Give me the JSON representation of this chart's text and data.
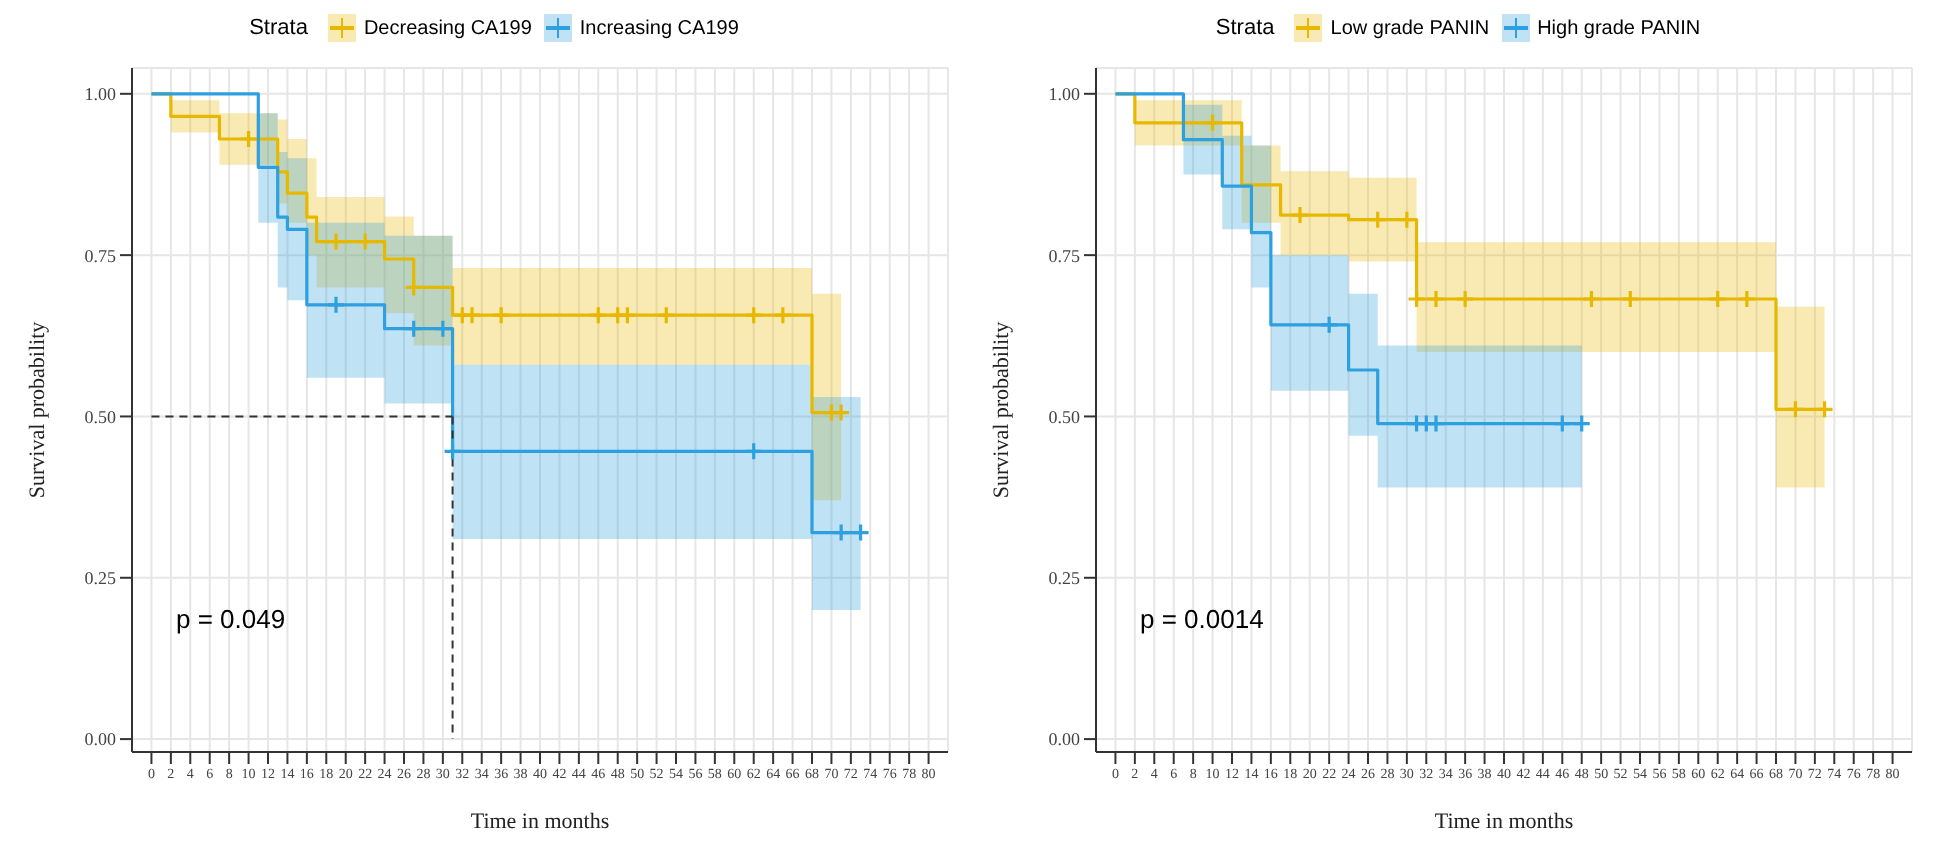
{
  "chart_data": [
    {
      "type": "step",
      "xlabel": "Time in months",
      "ylabel": "Survival probability",
      "legend_title": "Strata",
      "legend": "top",
      "grid": true,
      "xlim": [
        -2,
        82
      ],
      "xticks": [
        0,
        2,
        4,
        6,
        8,
        10,
        12,
        14,
        16,
        18,
        20,
        22,
        24,
        26,
        28,
        30,
        32,
        34,
        36,
        38,
        40,
        42,
        44,
        46,
        48,
        50,
        52,
        54,
        56,
        58,
        60,
        62,
        64,
        66,
        68,
        70,
        72,
        74,
        76,
        78,
        80
      ],
      "ylim": [
        -0.02,
        1.04
      ],
      "yticks": [
        {
          "value": 0,
          "label": "0.00"
        },
        {
          "value": 0.25,
          "label": "0.25"
        },
        {
          "value": 0.5,
          "label": "0.50"
        },
        {
          "value": 0.75,
          "label": "0.75"
        },
        {
          "value": 1,
          "label": "1.00"
        }
      ],
      "annotations": [
        "p = 0.049"
      ],
      "series": [
        {
          "name": "Decreasing CA199",
          "color": "#e7b800",
          "x": [
            0,
            2,
            7,
            13,
            14,
            16,
            17,
            24,
            27,
            31,
            68,
            71
          ],
          "values": [
            1,
            0.965,
            0.93,
            0.879,
            0.846,
            0.809,
            0.771,
            0.744,
            0.7,
            0.657,
            0.506,
            0.506
          ],
          "lower": [
            1,
            0.94,
            0.89,
            0.83,
            0.8,
            0.75,
            0.7,
            0.66,
            0.61,
            0.58,
            0.37,
            0.37
          ],
          "upper": [
            1,
            0.99,
            0.97,
            0.96,
            0.93,
            0.9,
            0.84,
            0.81,
            0.78,
            0.73,
            0.69,
            0.69
          ]
        },
        {
          "name": "Increasing CA199",
          "color": "#2e9fdf",
          "x": [
            0,
            11,
            13,
            14,
            16,
            24,
            31,
            68,
            73
          ],
          "values": [
            1,
            0.886,
            0.809,
            0.79,
            0.673,
            0.636,
            0.446,
            0.32,
            0.32
          ],
          "lower": [
            1,
            0.8,
            0.7,
            0.68,
            0.56,
            0.52,
            0.31,
            0.2,
            0.2
          ],
          "upper": [
            1,
            0.97,
            0.91,
            0.9,
            0.8,
            0.78,
            0.58,
            0.53,
            0.53
          ]
        },
        {
          "type": "scatter",
          "color": "#e7b800",
          "marker": "cross",
          "x": [
            10,
            19,
            22,
            27,
            32,
            33,
            36,
            46,
            48,
            49,
            53,
            62,
            65,
            70,
            71
          ],
          "values": [
            0.93,
            0.771,
            0.771,
            0.7,
            0.657,
            0.657,
            0.657,
            0.657,
            0.657,
            0.657,
            0.657,
            0.657,
            0.657,
            0.506,
            0.506
          ]
        },
        {
          "type": "scatter",
          "color": "#2e9fdf",
          "marker": "cross",
          "x": [
            19,
            27,
            30,
            31,
            62,
            71,
            73
          ],
          "values": [
            0.673,
            0.636,
            0.636,
            0.446,
            0.446,
            0.32,
            0.32
          ]
        },
        {
          "type": "line",
          "color": "#333333",
          "line_style": "dashed",
          "x": [
            0,
            31
          ],
          "values": [
            0.5,
            0.5
          ]
        },
        {
          "type": "line",
          "color": "#333333",
          "line_style": "dashed",
          "x": [
            31,
            31
          ],
          "values": [
            0.5,
            0
          ]
        }
      ]
    },
    {
      "type": "step",
      "xlabel": "Time in months",
      "ylabel": "Survival probability",
      "legend_title": "Strata",
      "legend": "top",
      "grid": true,
      "xlim": [
        -2,
        82
      ],
      "xticks": [
        0,
        2,
        4,
        6,
        8,
        10,
        12,
        14,
        16,
        18,
        20,
        22,
        24,
        26,
        28,
        30,
        32,
        34,
        36,
        38,
        40,
        42,
        44,
        46,
        48,
        50,
        52,
        54,
        56,
        58,
        60,
        62,
        64,
        66,
        68,
        70,
        72,
        74,
        76,
        78,
        80
      ],
      "ylim": [
        -0.02,
        1.04
      ],
      "yticks": [
        {
          "value": 0,
          "label": "0.00"
        },
        {
          "value": 0.25,
          "label": "0.25"
        },
        {
          "value": 0.5,
          "label": "0.50"
        },
        {
          "value": 0.75,
          "label": "0.75"
        },
        {
          "value": 1,
          "label": "1.00"
        }
      ],
      "annotations": [
        "p = 0.0014"
      ],
      "series": [
        {
          "name": "Low grade PANIN",
          "color": "#e7b800",
          "x": [
            0,
            2,
            13,
            17,
            24,
            31,
            68,
            73
          ],
          "values": [
            1,
            0.955,
            0.859,
            0.812,
            0.805,
            0.682,
            0.511,
            0.511
          ],
          "lower": [
            1,
            0.92,
            0.8,
            0.75,
            0.74,
            0.6,
            0.39,
            0.39
          ],
          "upper": [
            1,
            0.99,
            0.92,
            0.88,
            0.87,
            0.77,
            0.67,
            0.67
          ]
        },
        {
          "name": "High grade PANIN",
          "color": "#2e9fdf",
          "x": [
            0,
            7,
            11,
            14,
            16,
            24,
            27,
            48
          ],
          "values": [
            1,
            0.929,
            0.857,
            0.785,
            0.642,
            0.572,
            0.489,
            0.489
          ],
          "lower": [
            1,
            0.875,
            0.79,
            0.7,
            0.54,
            0.47,
            0.39,
            0.39
          ],
          "upper": [
            1,
            0.983,
            0.935,
            0.92,
            0.75,
            0.69,
            0.61,
            0.61
          ]
        },
        {
          "type": "scatter",
          "color": "#e7b800",
          "marker": "cross",
          "x": [
            10,
            19,
            27,
            30,
            31,
            33,
            36,
            49,
            53,
            62,
            65,
            70,
            73
          ],
          "values": [
            0.955,
            0.812,
            0.805,
            0.805,
            0.682,
            0.682,
            0.682,
            0.682,
            0.682,
            0.682,
            0.682,
            0.511,
            0.511
          ]
        },
        {
          "type": "scatter",
          "color": "#2e9fdf",
          "marker": "cross",
          "x": [
            22,
            31,
            32,
            33,
            46,
            48
          ],
          "values": [
            0.642,
            0.489,
            0.489,
            0.489,
            0.489,
            0.489
          ]
        }
      ]
    }
  ]
}
